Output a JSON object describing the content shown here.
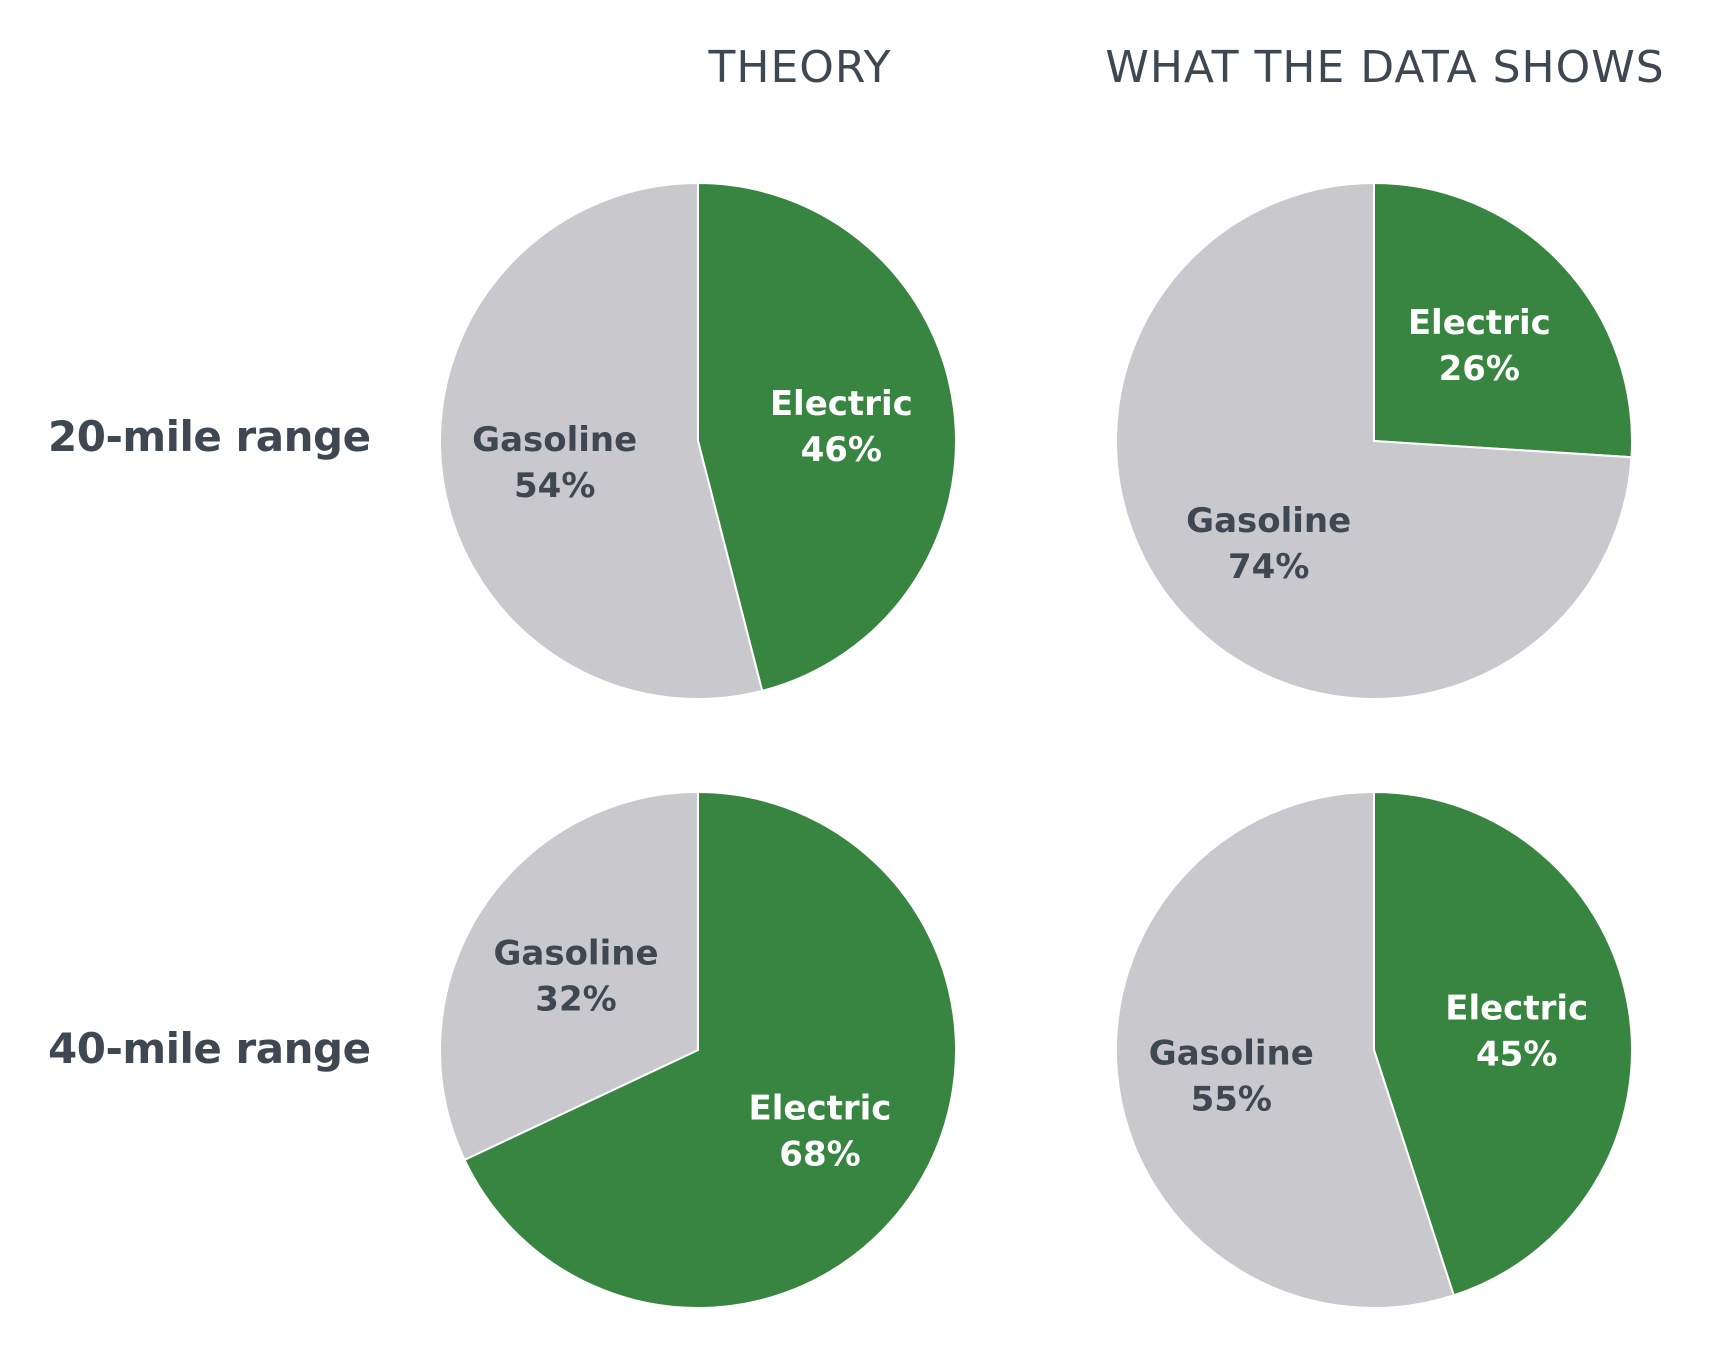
{
  "headings": {
    "theory": "THEORY",
    "data_shows": "WHAT THE DATA SHOWS"
  },
  "rows": {
    "range_20": "20-mile range",
    "range_40": "40-mile range"
  },
  "colors": {
    "electric": "#388541",
    "gasoline": "#c9c9cd",
    "text_dark": "#3d4852",
    "text_light": "#ffffff",
    "background": "#ffffff"
  },
  "chart_data": [
    {
      "type": "pie",
      "title": "THEORY",
      "row": "20-mile range",
      "slices": [
        {
          "label": "Electric",
          "value": 46,
          "display": "46%"
        },
        {
          "label": "Gasoline",
          "value": 54,
          "display": "54%"
        }
      ]
    },
    {
      "type": "pie",
      "title": "WHAT THE DATA SHOWS",
      "row": "20-mile range",
      "slices": [
        {
          "label": "Electric",
          "value": 26,
          "display": "26%"
        },
        {
          "label": "Gasoline",
          "value": 74,
          "display": "74%"
        }
      ]
    },
    {
      "type": "pie",
      "title": "THEORY",
      "row": "40-mile range",
      "slices": [
        {
          "label": "Electric",
          "value": 68,
          "display": "68%"
        },
        {
          "label": "Gasoline",
          "value": 32,
          "display": "32%"
        }
      ]
    },
    {
      "type": "pie",
      "title": "WHAT THE DATA SHOWS",
      "row": "40-mile range",
      "slices": [
        {
          "label": "Electric",
          "value": 45,
          "display": "45%"
        },
        {
          "label": "Gasoline",
          "value": 55,
          "display": "55%"
        }
      ]
    }
  ]
}
